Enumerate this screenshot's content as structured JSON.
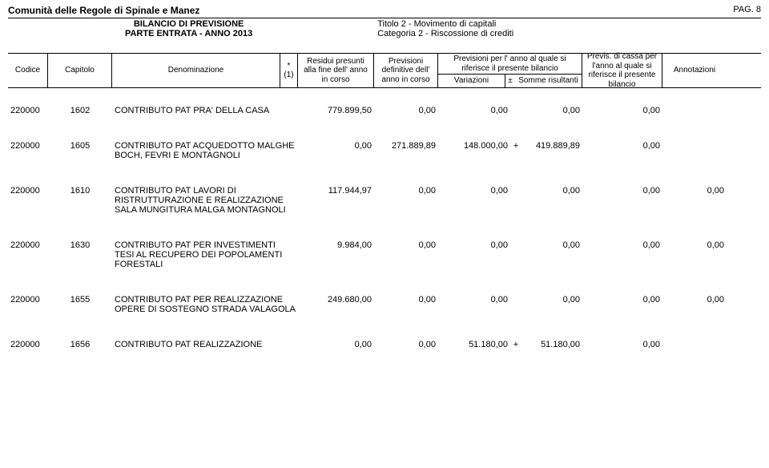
{
  "header": {
    "org": "Comunità delle Regole di Spinale e Manez",
    "pag_label": "PAG.",
    "pag_num": "8",
    "sub1": "BILANCIO DI PREVISIONE",
    "sub2": "PARTE ENTRATA - ANNO 2013",
    "titolo": "Titolo 2 - Movimento di capitali",
    "categoria": "Categoria 2 - Riscossione di crediti"
  },
  "columns": {
    "codice": "Codice",
    "capitolo": "Capitolo",
    "denom": "Denominazione",
    "star": "*\n(1)",
    "residui": "Residui presunti alla fine dell' anno in corso",
    "prevdef": "Previsioni definitive dell' anno in corso",
    "prevanno_top": "Previsioni per l' anno al quale si riferisce il presente bilancio",
    "variazioni": "Variazioni",
    "pm": "±",
    "somme": "Somme risultanti",
    "previs": "Previs. di cassa per l'anno al quale si riferisce il presente bilancio",
    "annot": "Annotazioni"
  },
  "rows": [
    {
      "codice": "220000",
      "capitolo": "1602",
      "denom": "CONTRIBUTO PAT PRA' DELLA CASA",
      "residui": "779.899,50",
      "prevdef": "0,00",
      "var": "0,00",
      "pm": "",
      "somme": "0,00",
      "previs": "0,00",
      "annot": ""
    },
    {
      "codice": "220000",
      "capitolo": "1605",
      "denom": "CONTRIBUTO PAT ACQUEDOTTO MALGHE BOCH, FEVRI E MONTAGNOLI",
      "residui": "0,00",
      "prevdef": "271.889,89",
      "var": "148.000,00",
      "pm": "+",
      "somme": "419.889,89",
      "previs": "0,00",
      "annot": ""
    },
    {
      "codice": "220000",
      "capitolo": "1610",
      "denom": "CONTRIBUTO PAT LAVORI DI RISTRUTTURAZIONE E REALIZZAZIONE SALA MUNGITURA MALGA MONTAGNOLI",
      "residui": "117.944,97",
      "prevdef": "0,00",
      "var": "0,00",
      "pm": "",
      "somme": "0,00",
      "previs": "0,00",
      "annot": "0,00"
    },
    {
      "codice": "220000",
      "capitolo": "1630",
      "denom": "CONTRIBUTO PAT PER INVESTIMENTI TESI AL RECUPERO DEI POPOLAMENTI FORESTALI",
      "residui": "9.984,00",
      "prevdef": "0,00",
      "var": "0,00",
      "pm": "",
      "somme": "0,00",
      "previs": "0,00",
      "annot": "0,00"
    },
    {
      "codice": "220000",
      "capitolo": "1655",
      "denom": "CONTRIBUTO PAT PER REALIZZAZIONE OPERE DI SOSTEGNO STRADA VALAGOLA",
      "residui": "249.680,00",
      "prevdef": "0,00",
      "var": "0,00",
      "pm": "",
      "somme": "0,00",
      "previs": "0,00",
      "annot": "0,00"
    },
    {
      "codice": "220000",
      "capitolo": "1656",
      "denom": "CONTRIBUTO PAT REALIZZAZIONE",
      "residui": "0,00",
      "prevdef": "0,00",
      "var": "51.180,00",
      "pm": "+",
      "somme": "51.180,00",
      "previs": "0,00",
      "annot": ""
    }
  ]
}
